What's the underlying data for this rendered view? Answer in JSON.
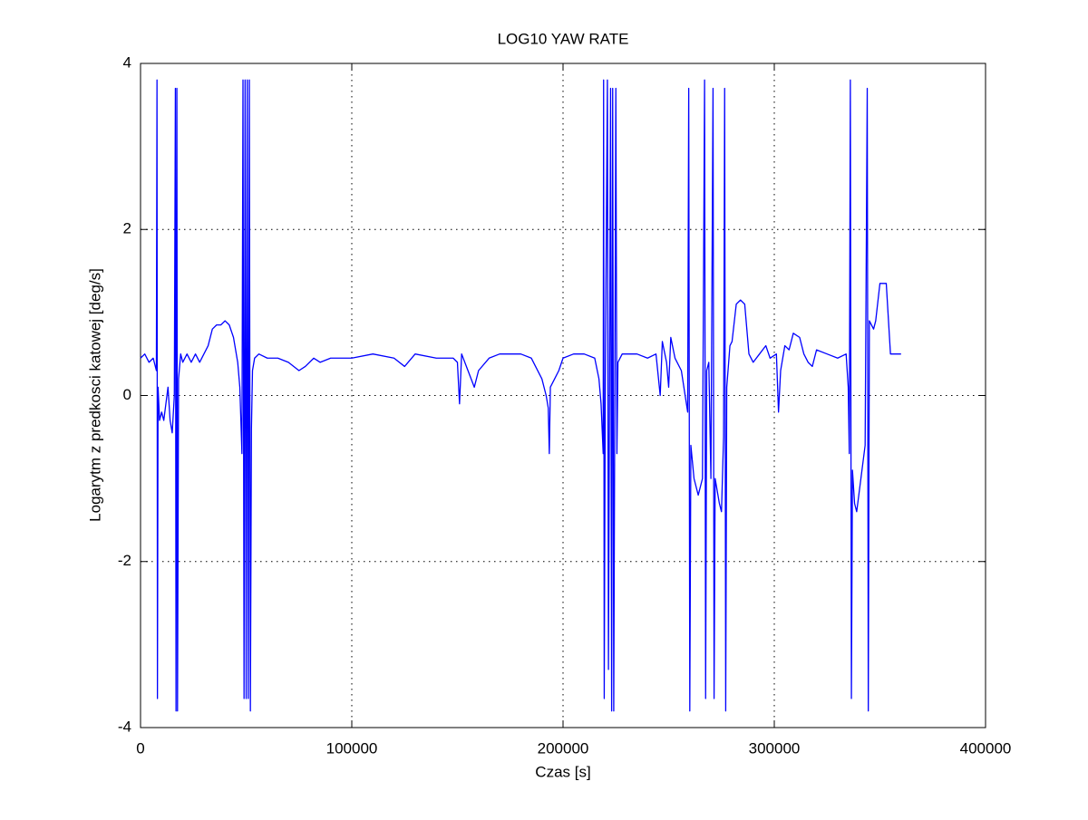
{
  "chart_data": {
    "type": "line",
    "title": "LOG10 YAW RATE",
    "xlabel": "Czas [s]",
    "ylabel": "Logarytm z predkosci katowej [deg/s]",
    "xlim": [
      0,
      400000
    ],
    "ylim": [
      -4,
      4
    ],
    "xticks": [
      0,
      100000,
      200000,
      300000,
      400000
    ],
    "yticks": [
      -4,
      -2,
      0,
      2,
      4
    ],
    "grid": true,
    "series": [
      {
        "color": "#0000ff",
        "x": [
          0,
          2000,
          4000,
          6000,
          7500,
          7800,
          8000,
          8300,
          9000,
          10000,
          11000,
          12000,
          13000,
          14000,
          15000,
          16000,
          16500,
          16800,
          17200,
          17500,
          18000,
          19000,
          20000,
          22000,
          24000,
          26000,
          28000,
          30000,
          32000,
          34000,
          36000,
          38000,
          40000,
          42000,
          44000,
          46000,
          47000,
          48000,
          48500,
          49000,
          49500,
          50000,
          50500,
          51000,
          51500,
          52000,
          52500,
          53000,
          54000,
          56000,
          60000,
          65000,
          70000,
          75000,
          78000,
          82000,
          85000,
          90000,
          100000,
          110000,
          120000,
          125000,
          130000,
          140000,
          148000,
          150000,
          151000,
          152000,
          155000,
          158000,
          160000,
          165000,
          170000,
          180000,
          185000,
          190000,
          192000,
          193000,
          193500,
          194000,
          196000,
          198000,
          200000,
          205000,
          210000,
          215000,
          217000,
          218000,
          219000,
          219200,
          219500,
          220000,
          221000,
          221500,
          222000,
          222500,
          223000,
          223500,
          224000,
          225000,
          225500,
          226000,
          228000,
          235000,
          240000,
          244000,
          246000,
          247000,
          249000,
          250000,
          251000,
          253000,
          256000,
          259000,
          259500,
          260000,
          260500,
          262000,
          264000,
          266000,
          267000,
          267500,
          268000,
          269000,
          270000,
          271000,
          271500,
          272000,
          274000,
          275000,
          276000,
          276500,
          277000,
          277500,
          279000,
          280000,
          282000,
          284000,
          286000,
          288000,
          290000,
          293000,
          296000,
          298000,
          301000,
          302000,
          303000,
          305000,
          307000,
          309000,
          312000,
          314000,
          316000,
          318000,
          320000,
          325000,
          330000,
          334000,
          335000,
          335500,
          336000,
          336500,
          337000,
          338000,
          339000,
          341000,
          343000,
          344000,
          344500,
          345000,
          347000,
          348000,
          350000,
          353000,
          355000,
          357000,
          360000
        ],
        "values": [
          0.45,
          0.5,
          0.4,
          0.45,
          0.3,
          3.8,
          -3.65,
          0.1,
          -0.3,
          -0.2,
          -0.3,
          -0.1,
          0.1,
          -0.3,
          -0.45,
          0.0,
          3.7,
          -3.8,
          3.7,
          -3.8,
          0.2,
          0.5,
          0.4,
          0.5,
          0.4,
          0.5,
          0.4,
          0.5,
          0.6,
          0.8,
          0.85,
          0.85,
          0.9,
          0.85,
          0.7,
          0.4,
          0.1,
          -0.7,
          3.8,
          -3.65,
          3.8,
          -3.65,
          3.8,
          -3.65,
          3.8,
          -3.8,
          -0.4,
          0.3,
          0.45,
          0.5,
          0.45,
          0.45,
          0.4,
          0.3,
          0.35,
          0.45,
          0.4,
          0.45,
          0.45,
          0.5,
          0.45,
          0.35,
          0.5,
          0.45,
          0.45,
          0.4,
          -0.1,
          0.5,
          0.3,
          0.1,
          0.3,
          0.45,
          0.5,
          0.5,
          0.45,
          0.2,
          0.0,
          -0.15,
          -0.7,
          0.1,
          0.2,
          0.3,
          0.45,
          0.5,
          0.5,
          0.45,
          0.2,
          -0.1,
          -0.7,
          3.8,
          -3.65,
          0.2,
          3.8,
          -3.3,
          0.1,
          3.7,
          -3.8,
          3.7,
          -3.8,
          3.7,
          -0.7,
          0.4,
          0.5,
          0.5,
          0.45,
          0.5,
          0.0,
          0.65,
          0.4,
          0.1,
          0.7,
          0.45,
          0.3,
          -0.2,
          3.7,
          -3.8,
          -0.6,
          -1.0,
          -1.2,
          -1.0,
          3.8,
          -3.65,
          0.3,
          0.4,
          -1.0,
          3.7,
          -3.65,
          -1.0,
          -1.3,
          -1.4,
          -0.5,
          3.7,
          -3.8,
          0.1,
          0.6,
          0.65,
          1.1,
          1.15,
          1.1,
          0.5,
          0.4,
          0.5,
          0.6,
          0.45,
          0.5,
          -0.2,
          0.3,
          0.6,
          0.55,
          0.75,
          0.7,
          0.5,
          0.4,
          0.35,
          0.55,
          0.5,
          0.45,
          0.5,
          0.1,
          -0.7,
          3.8,
          -3.65,
          -0.9,
          -1.3,
          -1.4,
          -1.0,
          -0.6,
          3.7,
          -3.8,
          0.9,
          0.8,
          0.9,
          1.35,
          1.35,
          0.5,
          0.5,
          0.5
        ]
      }
    ]
  }
}
